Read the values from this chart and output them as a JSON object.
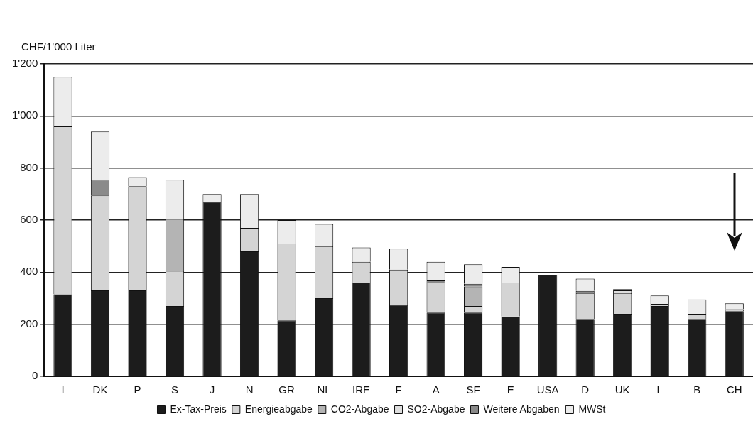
{
  "chart_data": {
    "type": "bar",
    "stacked": true,
    "ylabel": "CHF/1'000 Liter",
    "categories": [
      "I",
      "DK",
      "P",
      "S",
      "J",
      "N",
      "GR",
      "NL",
      "IRE",
      "F",
      "A",
      "SF",
      "E",
      "USA",
      "D",
      "UK",
      "L",
      "B",
      "CH"
    ],
    "series": [
      {
        "name": "Ex-Tax-Preis",
        "color": "#1c1c1c",
        "values": [
          315,
          330,
          330,
          270,
          670,
          480,
          215,
          300,
          360,
          275,
          245,
          245,
          230,
          390,
          220,
          240,
          270,
          220,
          250
        ]
      },
      {
        "name": "Energieabgabe",
        "color": "#d4d4d4",
        "values": [
          645,
          365,
          400,
          135,
          null,
          90,
          295,
          200,
          80,
          135,
          115,
          25,
          130,
          null,
          100,
          80,
          8,
          20,
          8
        ]
      },
      {
        "name": "CO2-Abgabe",
        "color": "#b4b4b4",
        "values": [
          null,
          null,
          null,
          200,
          null,
          null,
          null,
          null,
          null,
          null,
          null,
          75,
          null,
          null,
          null,
          null,
          null,
          null,
          null
        ]
      },
      {
        "name": "SO2-Abgabe",
        "color": "#dedede",
        "values": [
          null,
          null,
          null,
          null,
          null,
          null,
          null,
          null,
          null,
          null,
          null,
          null,
          null,
          null,
          null,
          10,
          null,
          null,
          null
        ]
      },
      {
        "name": "Weitere Abgaben",
        "color": "#8a8a8a",
        "values": [
          null,
          60,
          null,
          null,
          null,
          null,
          null,
          null,
          null,
          null,
          8,
          10,
          null,
          null,
          8,
          null,
          null,
          null,
          null
        ]
      },
      {
        "name": "MWSt",
        "color": "#ececec",
        "values": [
          190,
          185,
          35,
          150,
          30,
          130,
          90,
          85,
          55,
          80,
          72,
          75,
          60,
          null,
          47,
          5,
          32,
          55,
          22
        ]
      }
    ],
    "ylim": [
      0,
      1200
    ],
    "yticks": [
      0,
      200,
      400,
      600,
      800,
      {
        "value": 1000,
        "label": "1'000"
      },
      {
        "value": 1200,
        "label": "1'200"
      }
    ],
    "grid": "y",
    "legend": "bottom"
  }
}
